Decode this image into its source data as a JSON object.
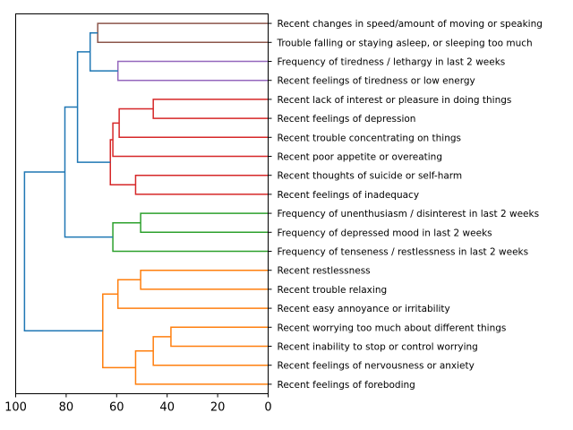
{
  "chart_data": {
    "type": "dendrogram",
    "orientation": "left",
    "xlim": [
      100,
      0
    ],
    "x_ticks": [
      100,
      80,
      60,
      40,
      20,
      0
    ],
    "x_tick_labels": [
      "100",
      "80",
      "60",
      "40",
      "20",
      "0"
    ],
    "leaves": [
      "Recent changes in speed/amount of moving or speaking",
      "Trouble falling or staying asleep, or sleeping too much",
      "Frequency of tiredness / lethargy in last 2 weeks",
      "Recent feelings of tiredness or low energy",
      "Recent lack of interest or pleasure in doing things",
      "Recent feelings of depression",
      "Recent trouble concentrating on things",
      "Recent poor appetite or overeating",
      "Recent thoughts of suicide or self-harm",
      "Recent feelings of inadequacy",
      "Frequency of unenthusiasm / disinterest in last 2 weeks",
      "Frequency of depressed mood in last 2 weeks",
      "Frequency of tenseness / restlessness in last 2 weeks",
      "Recent restlessness",
      "Recent trouble relaxing",
      "Recent easy annoyance or irritability",
      "Recent worrying too much about different things",
      "Recent inability to stop or control worrying",
      "Recent feelings of nervousness or anxiety",
      "Recent feelings of foreboding"
    ],
    "colors": {
      "brown": "#8c564b",
      "purple": "#9467bd",
      "red": "#d62728",
      "green": "#2ca02c",
      "orange": "#ff7f0e",
      "blue": "#1f77b4"
    },
    "merges": [
      {
        "a": 0,
        "b": 1,
        "height": 67.5,
        "color": "brown"
      },
      {
        "a": 2,
        "b": 3,
        "height": 59.5,
        "color": "purple"
      },
      {
        "a": 4,
        "b": 5,
        "height": 45.5,
        "color": "red"
      },
      {
        "a": 8,
        "b": 9,
        "height": 52.5,
        "color": "red"
      },
      {
        "a": 10,
        "b": 11,
        "height": 50.5,
        "color": "green"
      },
      {
        "a": 13,
        "b": 14,
        "height": 50.5,
        "color": "orange"
      },
      {
        "a": 16,
        "b": 17,
        "height": 38.5,
        "color": "orange"
      },
      {
        "a": "n2",
        "b": 6,
        "height": 59.0,
        "color": "red"
      },
      {
        "a": "n7",
        "b": 7,
        "height": 61.5,
        "color": "red"
      },
      {
        "a": "n8",
        "b": "n3",
        "height": 62.5,
        "color": "red"
      },
      {
        "a": "n4",
        "b": 12,
        "height": 61.5,
        "color": "green"
      },
      {
        "a": "n5",
        "b": 15,
        "height": 59.5,
        "color": "orange"
      },
      {
        "a": "n6",
        "b": 18,
        "height": 45.5,
        "color": "orange"
      },
      {
        "a": "n12",
        "b": 19,
        "height": 52.5,
        "color": "orange"
      },
      {
        "a": "n11",
        "b": "n13",
        "height": 65.5,
        "color": "orange"
      },
      {
        "a": "n0",
        "b": "n1",
        "height": 70.5,
        "color": "blue"
      },
      {
        "a": "n15",
        "b": "n9",
        "height": 75.5,
        "color": "blue"
      },
      {
        "a": "n16",
        "b": "n10",
        "height": 80.5,
        "color": "blue"
      },
      {
        "a": "n17",
        "b": "n14",
        "height": 96.5,
        "color": "blue"
      }
    ]
  }
}
